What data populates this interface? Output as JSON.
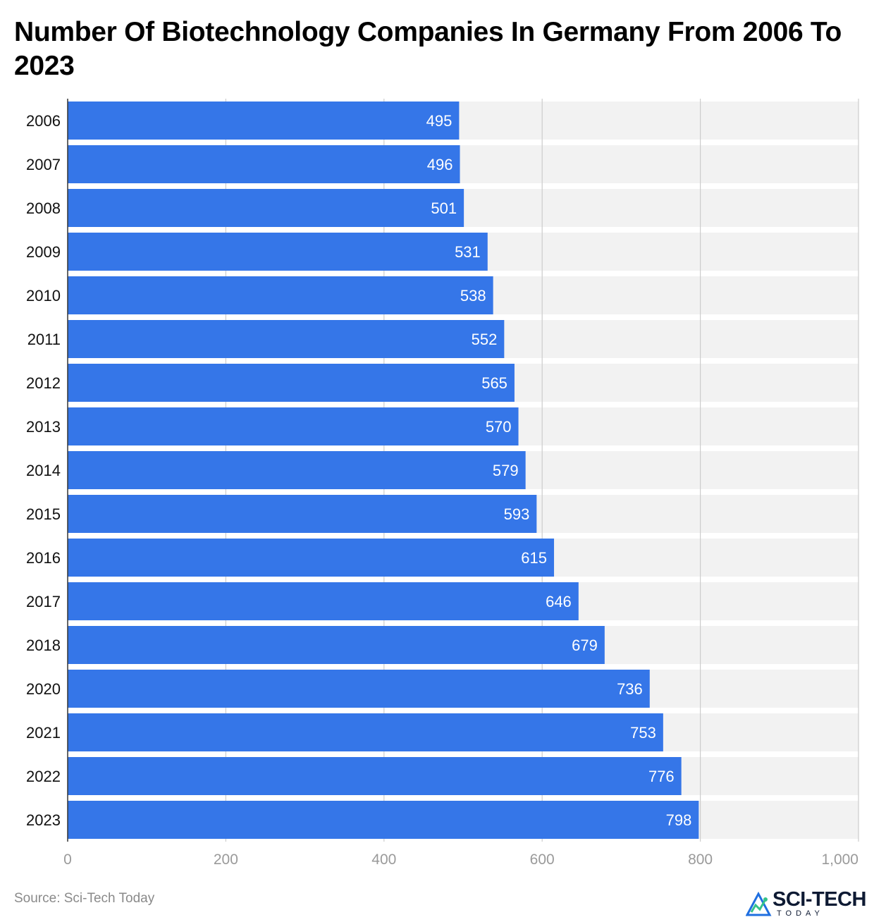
{
  "title": "Number Of Biotechnology Companies In Germany From 2006 To 2023",
  "source": "Source: Sci-Tech Today",
  "logo": {
    "name": "SCI-TECH",
    "sub": "TODAY"
  },
  "colors": {
    "bar": "#3576e8",
    "band": "#f2f2f2",
    "grid": "#cccccc",
    "axis_text": "#9a9a9a",
    "label_text": "#ffffff"
  },
  "chart_data": {
    "type": "bar",
    "orientation": "horizontal",
    "categories": [
      "2006",
      "2007",
      "2008",
      "2009",
      "2010",
      "2011",
      "2012",
      "2013",
      "2014",
      "2015",
      "2016",
      "2017",
      "2018",
      "2020",
      "2021",
      "2022",
      "2023"
    ],
    "values": [
      495,
      496,
      501,
      531,
      538,
      552,
      565,
      570,
      579,
      593,
      615,
      646,
      679,
      736,
      753,
      776,
      798
    ],
    "xlim": [
      0,
      1000
    ],
    "xticks": [
      0,
      200,
      400,
      600,
      800,
      1000
    ],
    "xtick_labels": [
      "0",
      "200",
      "400",
      "600",
      "800",
      "1,000"
    ],
    "grid": true,
    "data_labels": true
  }
}
